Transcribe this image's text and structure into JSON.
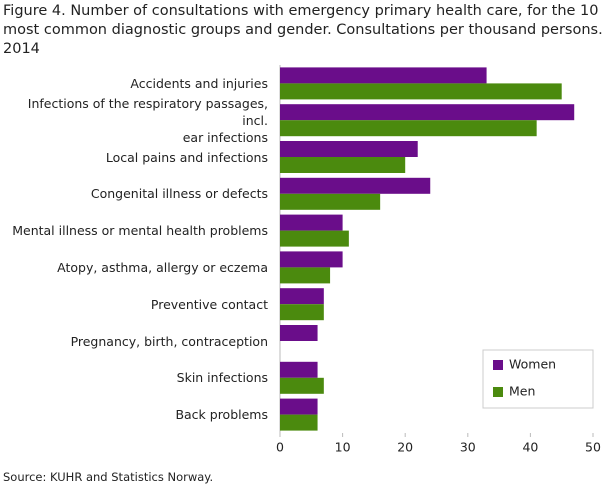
{
  "chart_data": {
    "type": "bar",
    "title": "Figure 4. Number of consultations with emergency primary health care, for the 10\nmost common diagnostic groups and gender. Consultations per thousand persons.\n2014",
    "categories": [
      "Accidents and injuries",
      "Infections of the respiratory passages, incl.\near infections",
      "Local pains and infections",
      "Congenital illness or defects",
      "Mental illness or mental health problems",
      "Atopy, asthma, allergy or eczema",
      "Preventive contact",
      "Pregnancy, birth, contraception",
      "Skin infections",
      "Back problems"
    ],
    "series": [
      {
        "name": "Women",
        "color": "#6a0d8a",
        "values": [
          33,
          47,
          22,
          24,
          10,
          10,
          7,
          6,
          6,
          6
        ]
      },
      {
        "name": "Men",
        "color": "#4b8a0e",
        "values": [
          45,
          41,
          20,
          16,
          11,
          8,
          7,
          null,
          7,
          6
        ]
      }
    ],
    "xlim": [
      0,
      50
    ],
    "xticks": [
      0,
      10,
      20,
      30,
      40,
      50
    ],
    "legend": "lower right",
    "source": "Source: KUHR and Statistics Norway."
  }
}
